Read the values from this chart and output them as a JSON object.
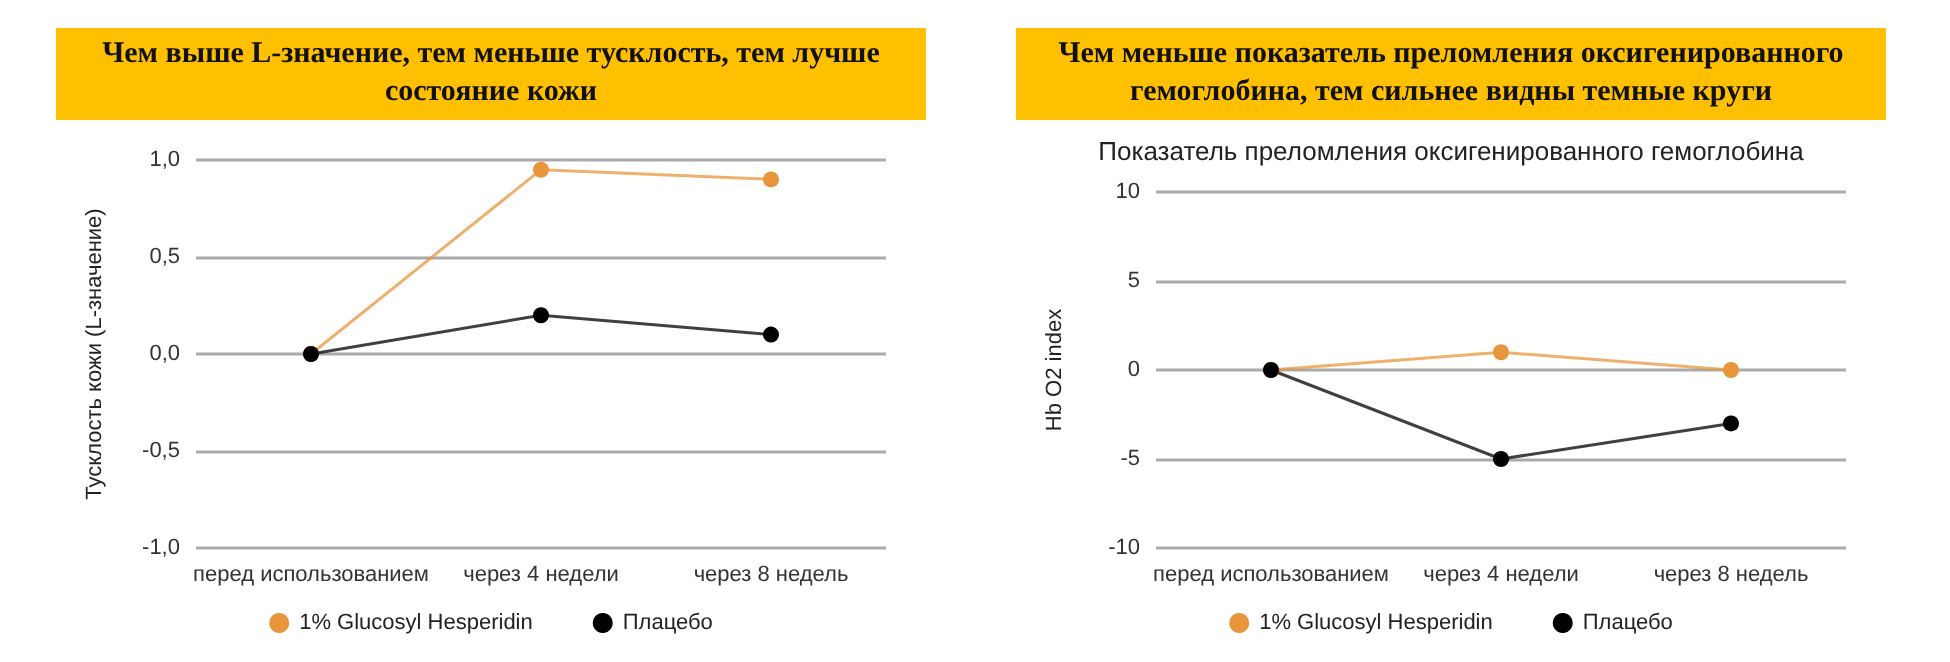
{
  "chart_data": [
    {
      "type": "line",
      "title": "Чем выше L-значение, тем меньше тусклость, тем лучше состояние кожи",
      "ylabel": "Тусклость кожи (L-значение)",
      "categories": [
        "перед использованием",
        "через 4 недели",
        "через 8 недель"
      ],
      "series": [
        {
          "name": "1% Glucosyl Hesperidin",
          "color": "#e8963c",
          "values": [
            0,
            0.95,
            0.9
          ]
        },
        {
          "name": "Плацебо",
          "color": "#000000",
          "values": [
            0,
            0.2,
            0.1
          ]
        }
      ],
      "ylim": [
        -1,
        1
      ],
      "yticks": [
        {
          "value": -1,
          "label": "-1,0"
        },
        {
          "value": -0.5,
          "label": "-0,5"
        },
        {
          "value": 0,
          "label": "0,0"
        },
        {
          "value": 0.5,
          "label": "0,5"
        },
        {
          "value": 1,
          "label": "1,0"
        }
      ],
      "grid": "y",
      "legend": "bottom",
      "marker": "circle",
      "line_style": "solid"
    },
    {
      "type": "line",
      "title": "Чем меньше показатель преломления оксигенированного гемоглобина, тем сильнее видны темные круги",
      "subtitle": "Показатель преломления оксигенированного гемоглобина",
      "ylabel": "Hb O2 index",
      "categories": [
        "перед использованием",
        "через 4 недели",
        "через 8 недель"
      ],
      "series": [
        {
          "name": "1% Glucosyl Hesperidin",
          "color": "#e8963c",
          "values": [
            0,
            1,
            0
          ]
        },
        {
          "name": "Плацебо",
          "color": "#000000",
          "values": [
            0,
            -5,
            -3
          ]
        }
      ],
      "ylim": [
        -10,
        10
      ],
      "yticks": [
        -10,
        -5,
        0,
        5,
        10
      ],
      "grid": "y",
      "legend": "bottom",
      "marker": "circle",
      "line_style": "solid"
    }
  ]
}
